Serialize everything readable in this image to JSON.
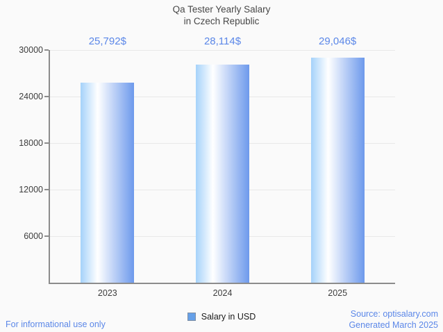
{
  "title": {
    "line1": "Qa Tester Yearly Salary",
    "line2": "in Czech Republic"
  },
  "legend": {
    "label": "Salary in USD"
  },
  "footer": {
    "left": "For informational use only",
    "source": "Source: optisalary.com",
    "generated": "Generated March 2025"
  },
  "colors": {
    "accent_text": "#5b87e8",
    "bar_gradient_left": "#a5d2fa",
    "bar_gradient_mid": "#ffffff",
    "bar_gradient_right": "#6d99ec",
    "legend_swatch": "#66a0e8",
    "axis_line": "#8c8c8c",
    "gridline": "#e8e8e8",
    "title_text": "#474747",
    "axis_text": "#3d3d3d"
  },
  "chart_data": {
    "type": "bar",
    "title": "Qa Tester Yearly Salary in Czech Republic",
    "categories": [
      "2023",
      "2024",
      "2025"
    ],
    "values": [
      25792,
      28114,
      29046
    ],
    "value_labels": [
      "25,792$",
      "28,114$",
      "29,046$"
    ],
    "series_name": "Salary in USD",
    "xlabel": "",
    "ylabel": "",
    "ylim": [
      0,
      30000
    ],
    "yticks": [
      6000,
      12000,
      18000,
      24000,
      30000
    ],
    "ytick_labels": [
      "6000",
      "12000",
      "18000",
      "24000",
      "30000"
    ],
    "grid": true,
    "legend_position": "bottom"
  }
}
